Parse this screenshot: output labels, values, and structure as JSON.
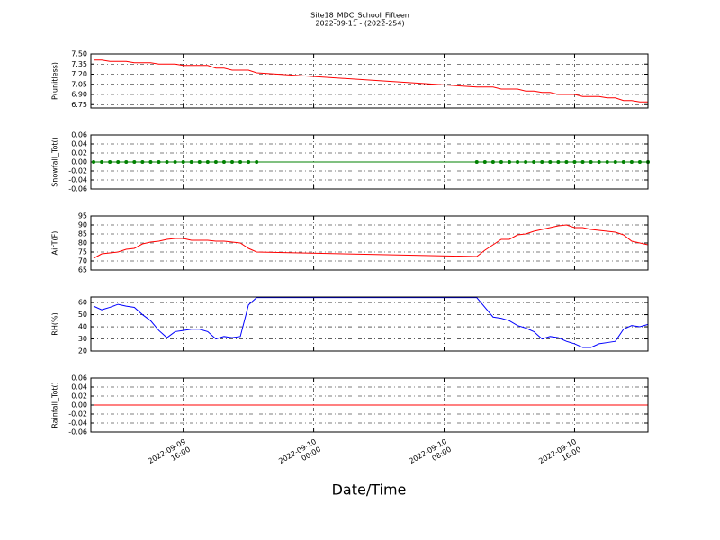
{
  "title": "Site18_MDC_School_Fifteen",
  "subtitle": "2022-09-11 - (2022-254)",
  "x_label": "Date/Time",
  "x_axis": {
    "xlim": [
      "2022-09-09 10:20",
      "2022-09-10 20:30"
    ],
    "xticks": [
      {
        "value": "2022-09-09 16:00",
        "label": "2022-09-09\n16:00"
      },
      {
        "value": "2022-09-10 00:00",
        "label": "2022-09-10\n00:00"
      },
      {
        "value": "2022-09-10 08:00",
        "label": "2022-09-10\n08:00"
      },
      {
        "value": "2022-09-10 16:00",
        "label": "2022-09-10\n16:00"
      }
    ],
    "grid": true
  },
  "chart_data": [
    {
      "type": "line",
      "y_label": "P(unitless)",
      "color": "#ff0000",
      "marker": false,
      "ylim": [
        6.7,
        7.5
      ],
      "yticks": [
        {
          "value": 6.75,
          "label": "6.75"
        },
        {
          "value": 6.9,
          "label": "6.90"
        },
        7.05,
        {
          "value": 7.2,
          "label": "7.20"
        },
        7.35,
        {
          "value": 7.5,
          "label": "7.50"
        }
      ],
      "x": [
        "2022-09-09 10:30",
        "2022-09-09 11:00",
        "2022-09-09 11:30",
        "2022-09-09 12:00",
        "2022-09-09 12:30",
        "2022-09-09 13:00",
        "2022-09-09 13:30",
        "2022-09-09 14:00",
        "2022-09-09 14:30",
        "2022-09-09 15:00",
        "2022-09-09 15:30",
        "2022-09-09 16:00",
        "2022-09-09 16:30",
        "2022-09-09 17:00",
        "2022-09-09 17:30",
        "2022-09-09 18:00",
        "2022-09-09 18:30",
        "2022-09-09 19:00",
        "2022-09-09 19:30",
        "2022-09-09 20:00",
        "2022-09-09 20:30",
        "2022-09-10 10:00",
        "2022-09-10 10:30",
        "2022-09-10 11:00",
        "2022-09-10 11:30",
        "2022-09-10 12:00",
        "2022-09-10 12:30",
        "2022-09-10 13:00",
        "2022-09-10 13:30",
        "2022-09-10 14:00",
        "2022-09-10 14:30",
        "2022-09-10 15:00",
        "2022-09-10 15:30",
        "2022-09-10 16:00",
        "2022-09-10 16:30",
        "2022-09-10 17:00",
        "2022-09-10 17:30",
        "2022-09-10 18:00",
        "2022-09-10 18:30",
        "2022-09-10 19:00",
        "2022-09-10 19:30",
        "2022-09-10 20:00",
        "2022-09-10 20:30"
      ],
      "values": [
        7.41,
        7.41,
        7.39,
        7.39,
        7.39,
        7.37,
        7.37,
        7.37,
        7.35,
        7.35,
        7.35,
        7.33,
        7.33,
        7.33,
        7.33,
        7.29,
        7.29,
        7.26,
        7.26,
        7.26,
        7.22,
        7.01,
        7.01,
        7.01,
        6.98,
        6.98,
        6.98,
        6.95,
        6.95,
        6.93,
        6.93,
        6.9,
        6.9,
        6.9,
        6.87,
        6.87,
        6.87,
        6.85,
        6.85,
        6.81,
        6.81,
        6.79,
        6.79
      ]
    },
    {
      "type": "line",
      "y_label": "Snowfall_Tot()",
      "color": "#008000",
      "marker": true,
      "ylim": [
        -0.06,
        0.06
      ],
      "yticks": [
        -0.06,
        -0.04,
        -0.02,
        {
          "value": 0,
          "label": "0.00"
        },
        0.02,
        0.04,
        0.06
      ],
      "x": [
        "2022-09-09 10:30",
        "2022-09-09 11:00",
        "2022-09-09 11:30",
        "2022-09-09 12:00",
        "2022-09-09 12:30",
        "2022-09-09 13:00",
        "2022-09-09 13:30",
        "2022-09-09 14:00",
        "2022-09-09 14:30",
        "2022-09-09 15:00",
        "2022-09-09 15:30",
        "2022-09-09 16:00",
        "2022-09-09 16:30",
        "2022-09-09 17:00",
        "2022-09-09 17:30",
        "2022-09-09 18:00",
        "2022-09-09 18:30",
        "2022-09-09 19:00",
        "2022-09-09 19:30",
        "2022-09-09 20:00",
        "2022-09-09 20:30",
        "2022-09-10 10:00",
        "2022-09-10 10:30",
        "2022-09-10 11:00",
        "2022-09-10 11:30",
        "2022-09-10 12:00",
        "2022-09-10 12:30",
        "2022-09-10 13:00",
        "2022-09-10 13:30",
        "2022-09-10 14:00",
        "2022-09-10 14:30",
        "2022-09-10 15:00",
        "2022-09-10 15:30",
        "2022-09-10 16:00",
        "2022-09-10 16:30",
        "2022-09-10 17:00",
        "2022-09-10 17:30",
        "2022-09-10 18:00",
        "2022-09-10 18:30",
        "2022-09-10 19:00",
        "2022-09-10 19:30",
        "2022-09-10 20:00",
        "2022-09-10 20:30"
      ],
      "values": [
        0,
        0,
        0,
        0,
        0,
        0,
        0,
        0,
        0,
        0,
        0,
        0,
        0,
        0,
        0,
        0,
        0,
        0,
        0,
        0,
        0,
        0,
        0,
        0,
        0,
        0,
        0,
        0,
        0,
        0,
        0,
        0,
        0,
        0,
        0,
        0,
        0,
        0,
        0,
        0,
        0,
        0,
        0
      ]
    },
    {
      "type": "line",
      "y_label": "AirT(F)",
      "color": "#ff0000",
      "marker": false,
      "ylim": [
        65,
        95
      ],
      "yticks": [
        65,
        70,
        75,
        80,
        85,
        90,
        95
      ],
      "x": [
        "2022-09-09 10:30",
        "2022-09-09 11:00",
        "2022-09-09 11:30",
        "2022-09-09 12:00",
        "2022-09-09 12:30",
        "2022-09-09 13:00",
        "2022-09-09 13:30",
        "2022-09-09 14:00",
        "2022-09-09 14:30",
        "2022-09-09 15:00",
        "2022-09-09 15:30",
        "2022-09-09 16:00",
        "2022-09-09 16:30",
        "2022-09-09 17:00",
        "2022-09-09 17:30",
        "2022-09-09 18:00",
        "2022-09-09 18:30",
        "2022-09-09 19:00",
        "2022-09-09 19:30",
        "2022-09-09 20:00",
        "2022-09-09 20:30",
        "2022-09-10 10:00",
        "2022-09-10 10:30",
        "2022-09-10 11:00",
        "2022-09-10 11:30",
        "2022-09-10 12:00",
        "2022-09-10 12:30",
        "2022-09-10 13:00",
        "2022-09-10 13:30",
        "2022-09-10 14:00",
        "2022-09-10 14:30",
        "2022-09-10 15:00",
        "2022-09-10 15:30",
        "2022-09-10 16:00",
        "2022-09-10 16:30",
        "2022-09-10 17:00",
        "2022-09-10 17:30",
        "2022-09-10 18:00",
        "2022-09-10 18:30",
        "2022-09-10 19:00",
        "2022-09-10 19:30",
        "2022-09-10 20:00",
        "2022-09-10 20:30"
      ],
      "values": [
        71.5,
        74,
        74.5,
        75,
        76.5,
        77,
        79.5,
        80.5,
        81,
        82,
        82.5,
        82.5,
        81.5,
        81.5,
        81.5,
        81,
        81,
        80.5,
        80,
        77,
        75,
        72.5,
        76,
        79,
        82,
        82,
        84.5,
        85,
        86.5,
        87.5,
        88.5,
        89.5,
        90,
        88.5,
        88.5,
        87.5,
        87,
        86.5,
        86,
        84.5,
        81,
        80,
        79
      ]
    },
    {
      "type": "line",
      "y_label": "RH(%)",
      "color": "#0000ff",
      "marker": false,
      "ylim": [
        20,
        64.5
      ],
      "yticks": [
        20,
        30,
        40,
        50,
        60
      ],
      "x": [
        "2022-09-09 10:30",
        "2022-09-09 11:00",
        "2022-09-09 11:30",
        "2022-09-09 12:00",
        "2022-09-09 12:30",
        "2022-09-09 13:00",
        "2022-09-09 13:30",
        "2022-09-09 14:00",
        "2022-09-09 14:30",
        "2022-09-09 15:00",
        "2022-09-09 15:30",
        "2022-09-09 16:00",
        "2022-09-09 16:30",
        "2022-09-09 17:00",
        "2022-09-09 17:30",
        "2022-09-09 18:00",
        "2022-09-09 18:30",
        "2022-09-09 19:00",
        "2022-09-09 19:30",
        "2022-09-09 20:00",
        "2022-09-09 20:30",
        "2022-09-10 10:00",
        "2022-09-10 10:30",
        "2022-09-10 11:00",
        "2022-09-10 11:30",
        "2022-09-10 12:00",
        "2022-09-10 12:30",
        "2022-09-10 13:00",
        "2022-09-10 13:30",
        "2022-09-10 14:00",
        "2022-09-10 14:30",
        "2022-09-10 15:00",
        "2022-09-10 15:30",
        "2022-09-10 16:00",
        "2022-09-10 16:30",
        "2022-09-10 17:00",
        "2022-09-10 17:30",
        "2022-09-10 18:00",
        "2022-09-10 18:30",
        "2022-09-10 19:00",
        "2022-09-10 19:30",
        "2022-09-10 20:00",
        "2022-09-10 20:30"
      ],
      "values": [
        57,
        54,
        56,
        58.5,
        57,
        56,
        50,
        45,
        37,
        31,
        36,
        37,
        38,
        38,
        36,
        30,
        32,
        31,
        32,
        58,
        64,
        64,
        56,
        48,
        47,
        45,
        41,
        39,
        36,
        30,
        32,
        31,
        28,
        26,
        23,
        23,
        26,
        27,
        28,
        38,
        41,
        40,
        42
      ]
    },
    {
      "type": "line",
      "y_label": "Rainfall_Tot()",
      "color": "#ff0000",
      "marker": false,
      "ylim": [
        -0.06,
        0.06
      ],
      "yticks": [
        -0.06,
        -0.04,
        -0.02,
        {
          "value": 0,
          "label": "0.00"
        },
        0.02,
        0.04,
        0.06
      ],
      "x": [
        "2022-09-09 10:30",
        "2022-09-09 11:00",
        "2022-09-09 11:30",
        "2022-09-09 12:00",
        "2022-09-09 12:30",
        "2022-09-09 13:00",
        "2022-09-09 13:30",
        "2022-09-09 14:00",
        "2022-09-09 14:30",
        "2022-09-09 15:00",
        "2022-09-09 15:30",
        "2022-09-09 16:00",
        "2022-09-09 16:30",
        "2022-09-09 17:00",
        "2022-09-09 17:30",
        "2022-09-09 18:00",
        "2022-09-09 18:30",
        "2022-09-09 19:00",
        "2022-09-09 19:30",
        "2022-09-09 20:00",
        "2022-09-09 20:30",
        "2022-09-10 10:00",
        "2022-09-10 10:30",
        "2022-09-10 11:00",
        "2022-09-10 11:30",
        "2022-09-10 12:00",
        "2022-09-10 12:30",
        "2022-09-10 13:00",
        "2022-09-10 13:30",
        "2022-09-10 14:00",
        "2022-09-10 14:30",
        "2022-09-10 15:00",
        "2022-09-10 15:30",
        "2022-09-10 16:00",
        "2022-09-10 16:30",
        "2022-09-10 17:00",
        "2022-09-10 17:30",
        "2022-09-10 18:00",
        "2022-09-10 18:30",
        "2022-09-10 19:00",
        "2022-09-10 19:30",
        "2022-09-10 20:00",
        "2022-09-10 20:30"
      ],
      "values": [
        0,
        0,
        0,
        0,
        0,
        0,
        0,
        0,
        0,
        0,
        0,
        0,
        0,
        0,
        0,
        0,
        0,
        0,
        0,
        0,
        0,
        0,
        0,
        0,
        0,
        0,
        0,
        0,
        0,
        0,
        0,
        0,
        0,
        0,
        0,
        0,
        0,
        0,
        0,
        0,
        0,
        0,
        0
      ]
    }
  ]
}
